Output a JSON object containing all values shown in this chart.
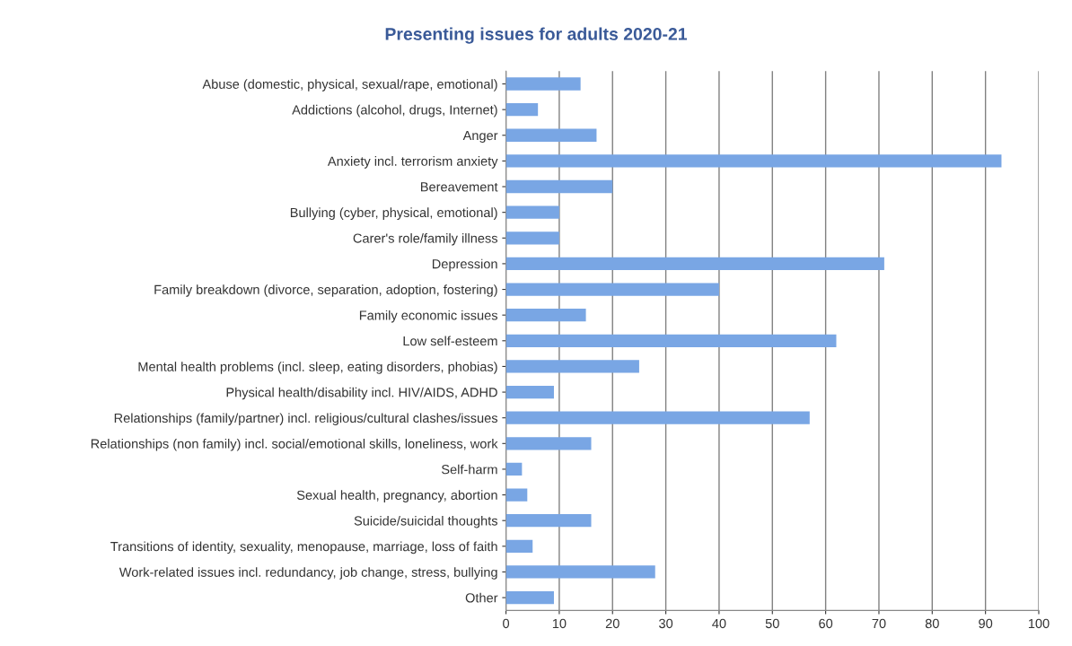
{
  "chart_data": {
    "type": "bar",
    "orientation": "horizontal",
    "title": "Presenting issues for adults 2020-21",
    "categories": [
      "Abuse (domestic, physical, sexual/rape, emotional)",
      "Addictions (alcohol, drugs, Internet)",
      "Anger",
      "Anxiety incl. terrorism anxiety",
      "Bereavement",
      "Bullying (cyber, physical, emotional)",
      "Carer's role/family illness",
      "Depression",
      "Family breakdown (divorce, separation, adoption, fostering)",
      "Family economic issues",
      "Low self-esteem",
      "Mental health problems (incl. sleep, eating disorders, phobias)",
      "Physical health/disability incl. HIV/AIDS, ADHD",
      "Relationships (family/partner) incl. religious/cultural clashes/issues",
      "Relationships (non family) incl. social/emotional skills, loneliness, work",
      "Self-harm",
      "Sexual health, pregnancy, abortion",
      "Suicide/suicidal thoughts",
      "Transitions of identity, sexuality, menopause, marriage, loss of faith",
      "Work-related issues incl. redundancy, job change, stress, bullying",
      "Other"
    ],
    "values": [
      14,
      6,
      17,
      93,
      20,
      10,
      10,
      71,
      40,
      15,
      62,
      25,
      9,
      57,
      16,
      3,
      4,
      16,
      5,
      28,
      9
    ],
    "color": "#79a6e4",
    "xlim": [
      0,
      100
    ],
    "xticks": [
      0,
      10,
      20,
      30,
      40,
      50,
      60,
      70,
      80,
      90,
      100
    ],
    "grid": "x"
  }
}
